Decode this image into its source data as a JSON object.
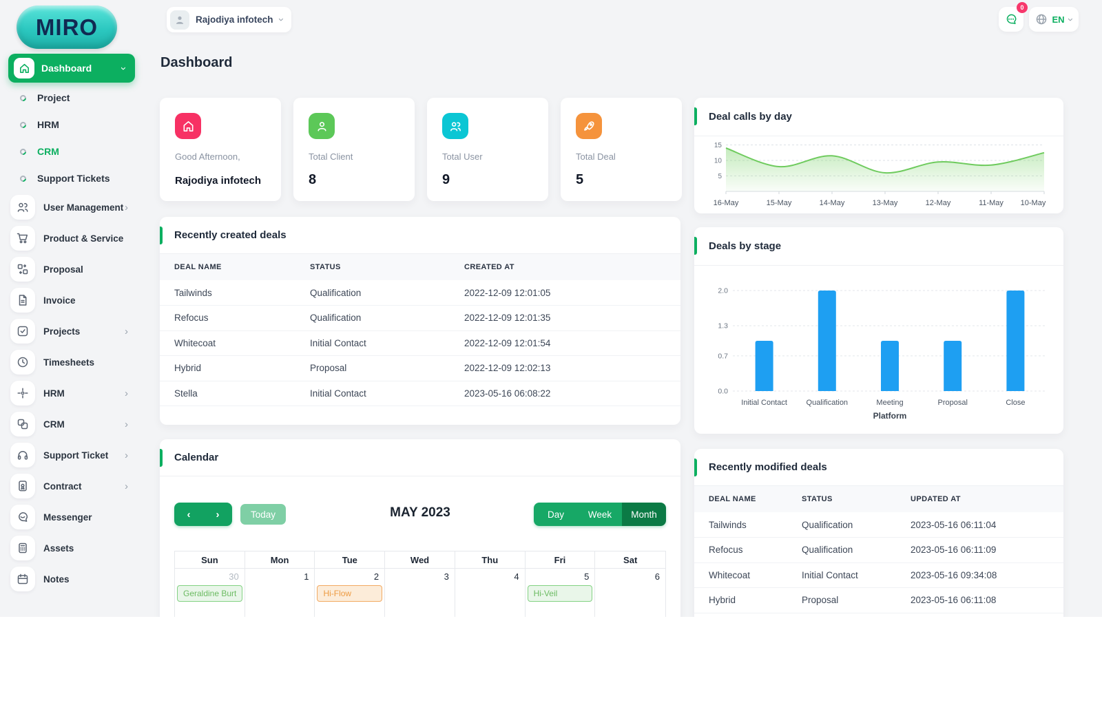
{
  "topbar": {
    "company": "Rajodiya infotech",
    "messages_badge": "0",
    "language": "EN"
  },
  "sidebar": {
    "logo": "MIRO",
    "dashboard": {
      "label": "Dashboard"
    },
    "dashboard_children": [
      {
        "label": "Project",
        "active": false
      },
      {
        "label": "HRM",
        "active": false
      },
      {
        "label": "CRM",
        "active": true
      },
      {
        "label": "Support Tickets",
        "active": false
      }
    ],
    "items": [
      {
        "label": "User Management",
        "icon": "users",
        "has_children": true
      },
      {
        "label": "Product & Service",
        "icon": "cart",
        "has_children": false
      },
      {
        "label": "Proposal",
        "icon": "swap-boxes",
        "has_children": false
      },
      {
        "label": "Invoice",
        "icon": "document",
        "has_children": false
      },
      {
        "label": "Projects",
        "icon": "check-square",
        "has_children": true
      },
      {
        "label": "Timesheets",
        "icon": "clock",
        "has_children": false
      },
      {
        "label": "HRM",
        "icon": "move",
        "has_children": true
      },
      {
        "label": "CRM",
        "icon": "layout",
        "has_children": true
      },
      {
        "label": "Support Ticket",
        "icon": "headset",
        "has_children": true
      },
      {
        "label": "Contract",
        "icon": "contract",
        "has_children": true
      },
      {
        "label": "Messenger",
        "icon": "chat",
        "has_children": false
      },
      {
        "label": "Assets",
        "icon": "calculator",
        "has_children": false
      },
      {
        "label": "Notes",
        "icon": "calendar",
        "has_children": false
      }
    ]
  },
  "page": {
    "title": "Dashboard"
  },
  "stats": [
    {
      "label": "Good Afternoon,",
      "value": "Rajodiya infotech",
      "icon": "home",
      "color": "#f73164"
    },
    {
      "label": "Total Client",
      "value": "8",
      "icon": "user",
      "color": "#5cc858"
    },
    {
      "label": "Total User",
      "value": "9",
      "icon": "users",
      "color": "#0bc6d4"
    },
    {
      "label": "Total Deal",
      "value": "5",
      "icon": "rocket",
      "color": "#f5933c"
    }
  ],
  "chart_data": [
    {
      "type": "area",
      "title": "Deal calls by day",
      "x": [
        "16-May",
        "15-May",
        "14-May",
        "13-May",
        "12-May",
        "11-May",
        "10-May"
      ],
      "values": [
        14,
        8,
        11.5,
        6,
        9.5,
        8.5,
        12.5
      ],
      "yticks": [
        5,
        10,
        15
      ],
      "ylim": [
        0,
        16
      ],
      "color": "#6fcb5e",
      "grid": "dashed-horizontal",
      "legend": "none"
    },
    {
      "type": "bar",
      "title": "Deals by stage",
      "categories": [
        "Initial Contact",
        "Qualification",
        "Meeting",
        "Proposal",
        "Close"
      ],
      "values": [
        1,
        2,
        1,
        1,
        2
      ],
      "yticks": [
        0.0,
        0.7,
        1.3,
        2.0
      ],
      "ylim": [
        0,
        2
      ],
      "xlabel": "Platform",
      "ylabel": "",
      "color": "#1e9ff2",
      "grid": "dashed-horizontal",
      "legend": "none"
    }
  ],
  "tables": {
    "created": {
      "title": "Recently created deals",
      "headers": [
        "DEAL NAME",
        "STATUS",
        "CREATED AT"
      ],
      "rows": [
        [
          "Tailwinds",
          "Qualification",
          "2022-12-09 12:01:05"
        ],
        [
          "Refocus",
          "Qualification",
          "2022-12-09 12:01:35"
        ],
        [
          "Whitecoat",
          "Initial Contact",
          "2022-12-09 12:01:54"
        ],
        [
          "Hybrid",
          "Proposal",
          "2022-12-09 12:02:13"
        ],
        [
          "Stella",
          "Initial Contact",
          "2023-05-16 06:08:22"
        ]
      ]
    },
    "modified": {
      "title": "Recently modified deals",
      "headers": [
        "DEAL NAME",
        "STATUS",
        "UPDATED AT"
      ],
      "rows": [
        [
          "Tailwinds",
          "Qualification",
          "2023-05-16 06:11:04"
        ],
        [
          "Refocus",
          "Qualification",
          "2023-05-16 06:11:09"
        ],
        [
          "Whitecoat",
          "Initial Contact",
          "2023-05-16 09:34:08"
        ],
        [
          "Hybrid",
          "Proposal",
          "2023-05-16 06:11:08"
        ]
      ]
    }
  },
  "calendar": {
    "title": "Calendar",
    "toolbar": {
      "today": "Today",
      "month_title": "MAY 2023",
      "views": [
        "Day",
        "Week",
        "Month"
      ],
      "active_view": "Month"
    },
    "weekdays": [
      "Sun",
      "Mon",
      "Tue",
      "Wed",
      "Thu",
      "Fri",
      "Sat"
    ],
    "days": [
      {
        "num": "30",
        "muted": true
      },
      {
        "num": "1",
        "muted": false
      },
      {
        "num": "2",
        "muted": false
      },
      {
        "num": "3",
        "muted": false
      },
      {
        "num": "4",
        "muted": false
      },
      {
        "num": "5",
        "muted": false
      },
      {
        "num": "6",
        "muted": false
      }
    ],
    "events": [
      {
        "day_index": 0,
        "label": "Geraldine Burt",
        "color": "green"
      },
      {
        "day_index": 2,
        "label": "Hi-Flow",
        "color": "orange"
      },
      {
        "day_index": 5,
        "label": "Hi-Veil",
        "color": "green"
      }
    ]
  },
  "colors": {
    "primary": "#0caf60",
    "bar_blue": "#1e9ff2",
    "line_green": "#6fcb5e",
    "badge_pink": "#f7386c"
  }
}
